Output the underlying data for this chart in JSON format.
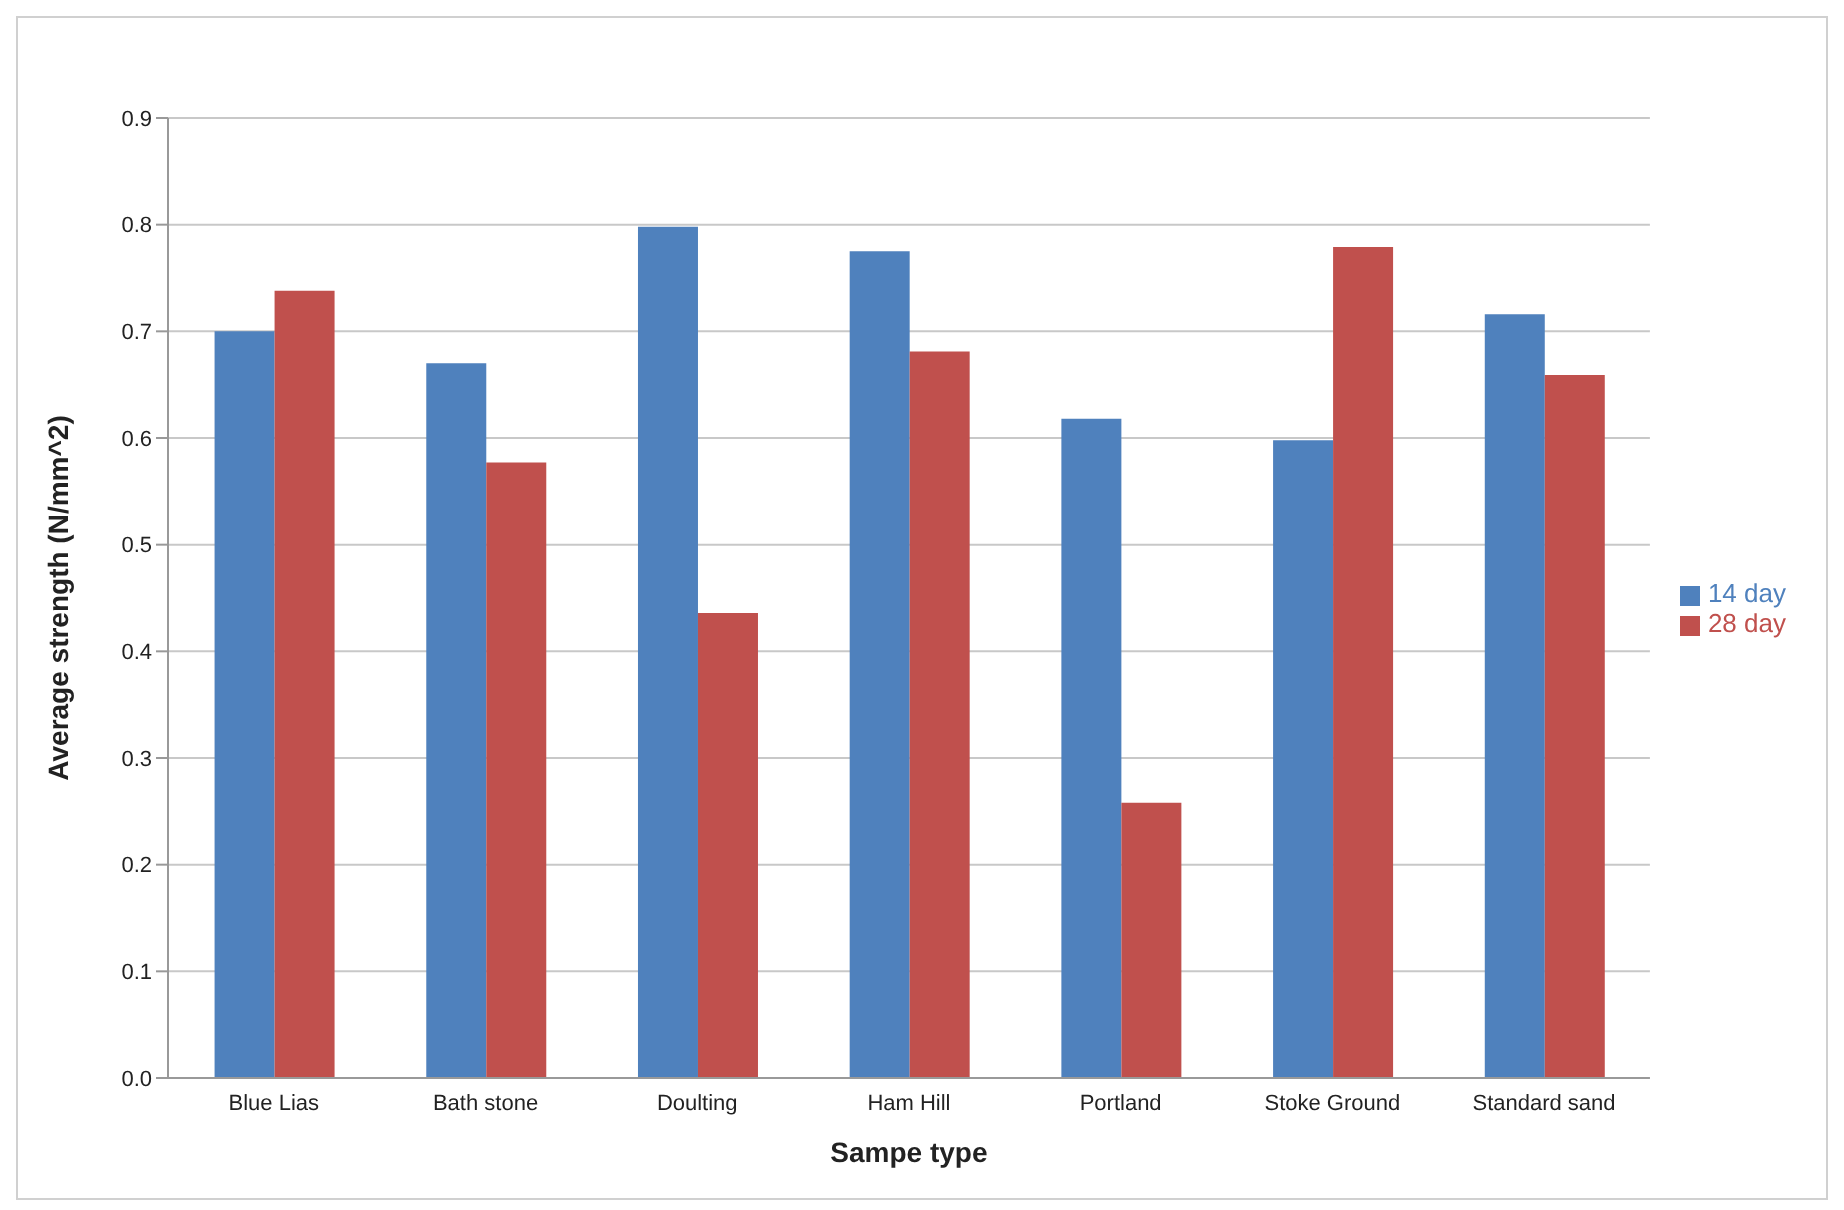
{
  "chart_data": {
    "type": "bar",
    "xlabel": "Sampe type",
    "ylabel": "Average strength (N/mm^2)",
    "categories": [
      "Blue Lias",
      "Bath stone",
      "Doulting",
      "Ham Hill",
      "Portland",
      "Stoke Ground",
      "Standard sand"
    ],
    "series": [
      {
        "name": "14 day",
        "color": "#4f81bd",
        "values": [
          0.7,
          0.67,
          0.798,
          0.775,
          0.618,
          0.598,
          0.716
        ]
      },
      {
        "name": "28 day",
        "color": "#c0504d",
        "values": [
          0.738,
          0.577,
          0.436,
          0.681,
          0.258,
          0.779,
          0.659
        ]
      }
    ],
    "ylim": [
      0,
      0.9
    ],
    "yticks": [
      {
        "value": 0,
        "label": "0.0"
      },
      {
        "value": 0.1,
        "label": "0.1"
      },
      {
        "value": 0.2,
        "label": "0.2"
      },
      {
        "value": 0.3,
        "label": "0.3"
      },
      {
        "value": 0.4,
        "label": "0.4"
      },
      {
        "value": 0.5,
        "label": "0.5"
      },
      {
        "value": 0.6,
        "label": "0.6"
      },
      {
        "value": 0.7,
        "label": "0.7"
      },
      {
        "value": 0.8,
        "label": "0.8"
      },
      {
        "value": 0.9,
        "label": "0.9"
      }
    ],
    "grid": "y",
    "legend": "right"
  }
}
